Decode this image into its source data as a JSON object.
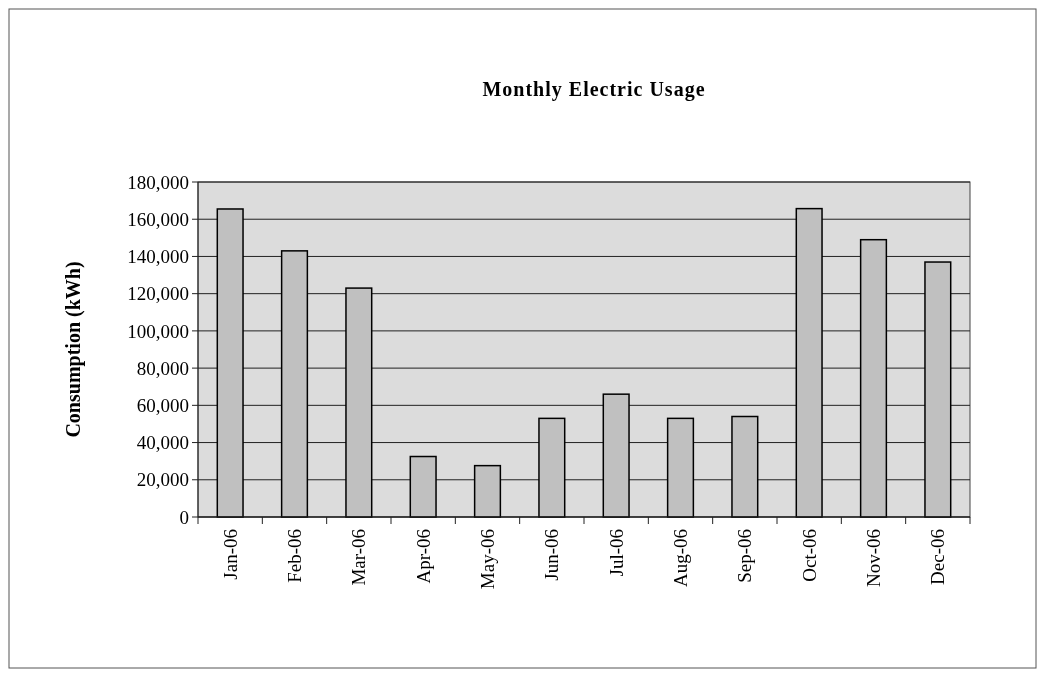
{
  "chart_data": {
    "type": "bar",
    "title": "Monthly Electric Usage",
    "ylabel": "Consumption (kWh)",
    "categories": [
      "Jan-06",
      "Feb-06",
      "Mar-06",
      "Apr-06",
      "May-06",
      "Jun-06",
      "Jul-06",
      "Aug-06",
      "Sep-06",
      "Oct-06",
      "Nov-06",
      "Dec-06"
    ],
    "values": [
      165500,
      143000,
      123000,
      32500,
      27600,
      53000,
      66000,
      53000,
      54000,
      165700,
      149000,
      137000
    ],
    "color": "#c0c0c0",
    "ylim": [
      0,
      180000
    ],
    "yticks": [
      {
        "value": 0,
        "label": "0"
      },
      {
        "value": 20000,
        "label": "20,000"
      },
      {
        "value": 40000,
        "label": "40,000"
      },
      {
        "value": 60000,
        "label": "60,000"
      },
      {
        "value": 80000,
        "label": "80,000"
      },
      {
        "value": 100000,
        "label": "100,000"
      },
      {
        "value": 120000,
        "label": "120,000"
      },
      {
        "value": 140000,
        "label": "140,000"
      },
      {
        "value": 160000,
        "label": "160,000"
      },
      {
        "value": 180000,
        "label": "180,000"
      }
    ],
    "grid": "y"
  }
}
